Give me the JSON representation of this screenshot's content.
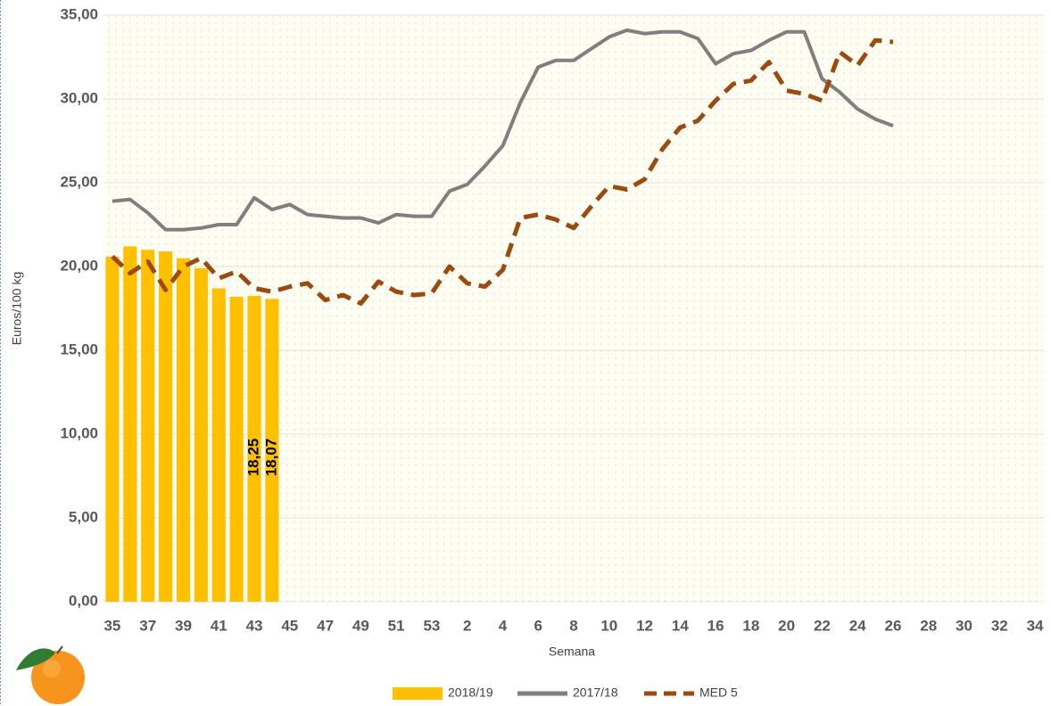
{
  "chart_data": {
    "type": "bar",
    "x_label": "Semana",
    "y_label": "Euros/100 kg",
    "categories": [
      "35",
      null,
      "37",
      null,
      "39",
      null,
      "41",
      null,
      "43",
      null,
      "45",
      null,
      "47",
      null,
      "49",
      null,
      "51",
      null,
      "53",
      null,
      "2",
      null,
      "4",
      null,
      "6",
      null,
      "8",
      null,
      "10",
      null,
      "12",
      null,
      "14",
      null,
      "16",
      null,
      "18",
      null,
      "20",
      null,
      "22",
      null,
      "24",
      null,
      "26",
      null,
      "28",
      null,
      "30",
      null,
      "32",
      null,
      "34"
    ],
    "ylim": [
      0,
      35
    ],
    "yticks": [
      {
        "value": 0,
        "label": "0,00"
      },
      {
        "value": 5,
        "label": "5,00"
      },
      {
        "value": 10,
        "label": "10,00"
      },
      {
        "value": 15,
        "label": "15,00"
      },
      {
        "value": 20,
        "label": "20,00"
      },
      {
        "value": 25,
        "label": "25,00"
      },
      {
        "value": 30,
        "label": "30,00"
      },
      {
        "value": 35,
        "label": "35,00"
      }
    ],
    "grid": true,
    "legend": "bottom",
    "series": [
      {
        "name": "2018/19",
        "type": "bar",
        "color": "#FFC000",
        "values": [
          20.6,
          21.2,
          21.0,
          20.9,
          20.5,
          19.9,
          18.7,
          18.2,
          18.25,
          18.07,
          null,
          null,
          null,
          null,
          null,
          null,
          null,
          null,
          null,
          null,
          null,
          null,
          null,
          null,
          null,
          null,
          null,
          null,
          null,
          null,
          null,
          null,
          null,
          null,
          null,
          null,
          null,
          null,
          null,
          null,
          null,
          null,
          null,
          null,
          null,
          null,
          null,
          null,
          null,
          null,
          null,
          null,
          null
        ],
        "value_labels": [
          null,
          null,
          null,
          null,
          null,
          null,
          null,
          null,
          "18,25",
          "18,07",
          null,
          null,
          null,
          null,
          null,
          null,
          null,
          null,
          null,
          null,
          null,
          null,
          null,
          null,
          null,
          null,
          null,
          null,
          null,
          null,
          null,
          null,
          null,
          null,
          null,
          null,
          null,
          null,
          null,
          null,
          null,
          null,
          null,
          null,
          null,
          null,
          null,
          null,
          null,
          null,
          null,
          null,
          null
        ]
      },
      {
        "name": "2017/18",
        "type": "line",
        "color": "#7f7f7f",
        "values": [
          23.9,
          24.0,
          23.2,
          22.2,
          22.2,
          22.3,
          22.5,
          22.5,
          24.1,
          23.4,
          23.7,
          23.1,
          23.0,
          22.9,
          22.9,
          22.6,
          23.1,
          23.0,
          23.0,
          24.5,
          24.9,
          26.0,
          27.2,
          29.8,
          31.9,
          32.3,
          32.3,
          33.0,
          33.7,
          34.1,
          33.9,
          34.0,
          34.0,
          33.6,
          32.1,
          32.7,
          32.9,
          33.5,
          34.0,
          34.0,
          31.2,
          30.4,
          29.4,
          28.8,
          28.4,
          null,
          null,
          null,
          null,
          null,
          null,
          null,
          null
        ]
      },
      {
        "name": "MED 5",
        "type": "dashed",
        "color": "#9c4a10",
        "values": [
          20.6,
          19.6,
          20.3,
          18.6,
          20.0,
          20.5,
          19.3,
          19.7,
          18.7,
          18.5,
          18.8,
          19.0,
          18.0,
          18.3,
          17.8,
          19.1,
          18.5,
          18.3,
          18.4,
          20.0,
          19.0,
          18.8,
          19.8,
          22.9,
          23.1,
          22.8,
          22.3,
          23.6,
          24.8,
          24.6,
          25.2,
          27.0,
          28.3,
          28.7,
          29.9,
          30.9,
          31.1,
          32.2,
          30.5,
          30.3,
          29.9,
          32.8,
          32.0,
          33.5,
          33.4,
          null,
          null,
          null,
          null,
          null,
          null,
          null,
          null
        ]
      }
    ]
  }
}
